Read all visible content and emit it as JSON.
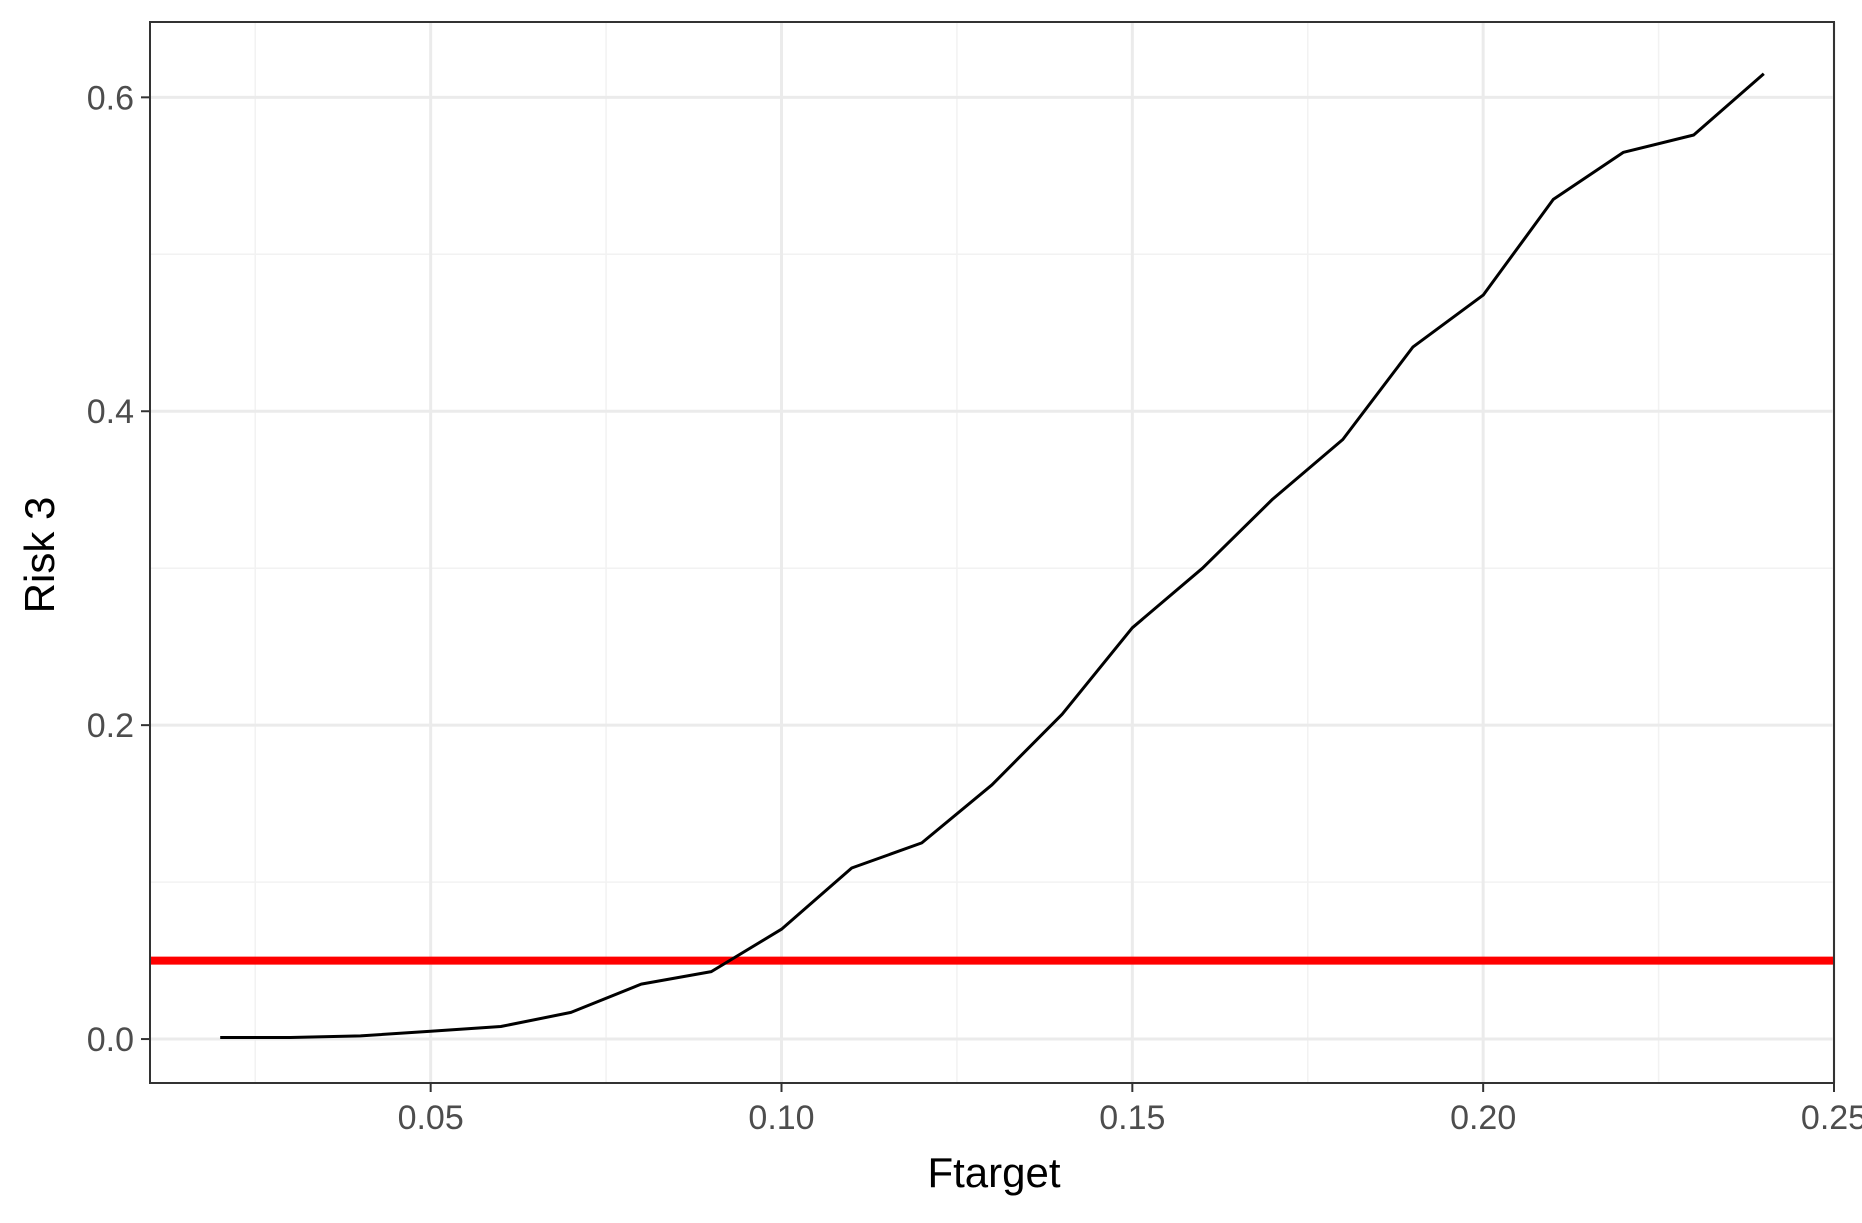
{
  "chart_data": {
    "type": "line",
    "xlabel": "Ftarget",
    "ylabel": "Risk 3",
    "xlim": [
      0.01,
      0.25
    ],
    "ylim": [
      -0.028,
      0.648
    ],
    "x_ticks": [
      0.05,
      0.1,
      0.15,
      0.2,
      0.25
    ],
    "x_tick_labels": [
      "0.05",
      "0.10",
      "0.15",
      "0.20",
      "0.25"
    ],
    "x_minor_ticks": [
      0.025,
      0.075,
      0.125,
      0.175,
      0.225
    ],
    "y_ticks": [
      0.0,
      0.2,
      0.4,
      0.6
    ],
    "y_tick_labels": [
      "0.0",
      "0.2",
      "0.4",
      "0.6"
    ],
    "y_minor_ticks": [
      0.1,
      0.3,
      0.5
    ],
    "grid": true,
    "series": [
      {
        "color": "#000000",
        "x": [
          0.02,
          0.03,
          0.04,
          0.05,
          0.06,
          0.07,
          0.08,
          0.09,
          0.1,
          0.11,
          0.12,
          0.13,
          0.14,
          0.15,
          0.16,
          0.17,
          0.18,
          0.19,
          0.2,
          0.21,
          0.22,
          0.23,
          0.24
        ],
        "y": [
          0.001,
          0.001,
          0.002,
          0.005,
          0.008,
          0.017,
          0.035,
          0.043,
          0.07,
          0.109,
          0.125,
          0.162,
          0.207,
          0.262,
          0.3,
          0.344,
          0.382,
          0.441,
          0.474,
          0.535,
          0.565,
          0.576,
          0.615
        ]
      }
    ],
    "reference_lines": [
      {
        "orientation": "horizontal",
        "y": 0.05,
        "color": "#ff0000"
      }
    ]
  }
}
